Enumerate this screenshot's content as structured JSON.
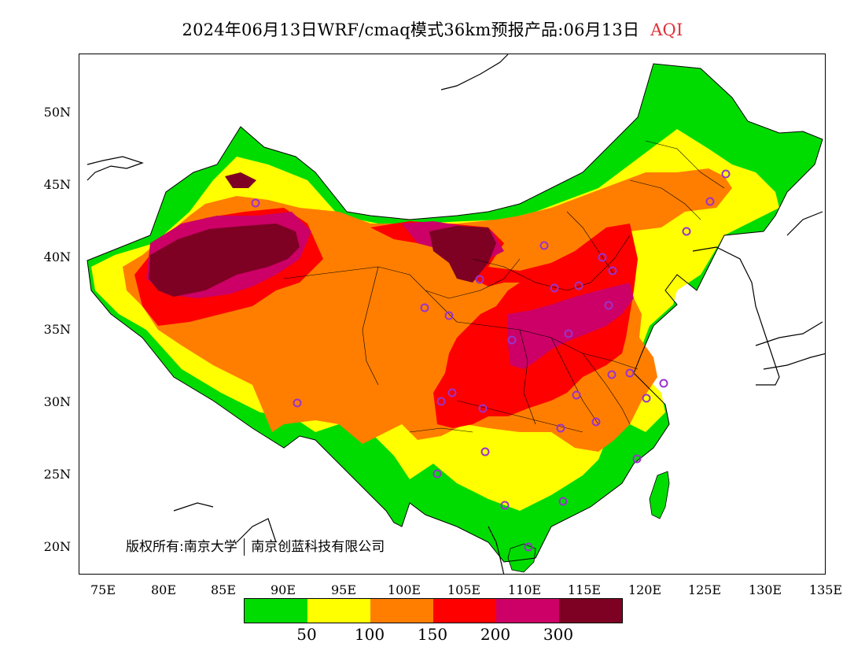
{
  "title": {
    "main": "2024年06月13日WRF/cmaq模式36km预报产品:06月13日",
    "variable": "AQI",
    "variable_color": "#e0303a"
  },
  "axes": {
    "lat_labels": [
      "50N",
      "45N",
      "40N",
      "35N",
      "30N",
      "25N",
      "20N"
    ],
    "lon_labels": [
      "75E",
      "80E",
      "85E",
      "90E",
      "95E",
      "100E",
      "105E",
      "110E",
      "115E",
      "120E",
      "125E",
      "130E",
      "135E"
    ]
  },
  "copyright": {
    "left": "版权所有:南京大学",
    "right": "南京创蓝科技有限公司"
  },
  "legend": {
    "colors": [
      "#00dc00",
      "#ffff00",
      "#ff7e00",
      "#ff0000",
      "#cc0066",
      "#7e0023"
    ],
    "labels": [
      "50",
      "100",
      "150",
      "200",
      "300"
    ]
  },
  "map": {
    "land_outline_color": "#000000",
    "city_marker_color": "#9933cc"
  }
}
